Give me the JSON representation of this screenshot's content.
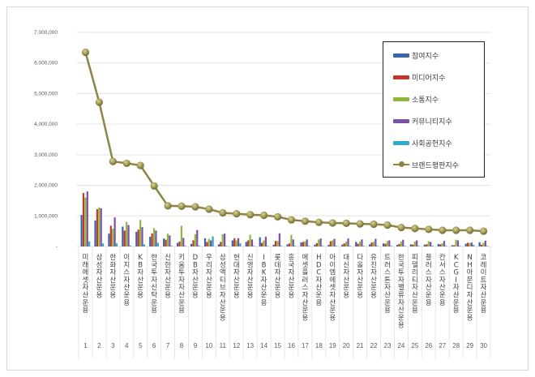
{
  "chart_data": {
    "type": "bar+line",
    "title": "",
    "xlabel": "",
    "ylabel": "",
    "ylim": [
      0,
      7000000
    ],
    "yticks": [
      "-",
      "1,000,000",
      "2,000,000",
      "3,000,000",
      "4,000,000",
      "5,000,000",
      "6,000,000",
      "7,000,000"
    ],
    "grid": true,
    "legend_position": "upper-right-inside",
    "x": [
      1,
      2,
      3,
      4,
      5,
      6,
      7,
      8,
      9,
      10,
      11,
      12,
      13,
      14,
      15,
      16,
      17,
      18,
      19,
      20,
      21,
      22,
      23,
      24,
      25,
      26,
      27,
      28,
      29,
      30
    ],
    "categories": [
      "미래에셋자산운용",
      "삼성자산운용",
      "한화자산운용",
      "이지스자산운용",
      "KB자산운용",
      "한국투자신탁운용",
      "신한자산운용",
      "키움투자자산운용",
      "DB자산운용",
      "우리자산운용",
      "삼성액티브자산운용",
      "현대자산운용",
      "신영자산운용",
      "IBK자산운용",
      "롯데자산운용",
      "흥국자산운용",
      "에셋플러스자산운용",
      "HDC자산운용",
      "아이엠에셋자산운용",
      "대신자산운용",
      "다올자산운용",
      "유진자산운용",
      "트러스톤자산운용",
      "한국투자밸류자산운용",
      "피델리티자산운용",
      "플러스자산운용",
      "칸서스자산운용",
      "KCGI자산운용",
      "NH아문디자산운용",
      "코레이트자산운용"
    ],
    "series": [
      {
        "name": "참여지수",
        "type": "bar",
        "color": "#3b64ad",
        "values": [
          1030000,
          850000,
          420000,
          650000,
          480000,
          320000,
          260000,
          120000,
          80000,
          270000,
          70000,
          200000,
          150000,
          300000,
          60000,
          70000,
          130000,
          60000,
          50000,
          60000,
          150000,
          70000,
          100000,
          50000,
          70000,
          60000,
          80000,
          40000,
          90000,
          140000
        ]
      },
      {
        "name": "미디어지수",
        "type": "bar",
        "color": "#c0392b",
        "values": [
          1750000,
          1220000,
          680000,
          520000,
          550000,
          430000,
          220000,
          160000,
          200000,
          150000,
          150000,
          270000,
          200000,
          120000,
          180000,
          100000,
          150000,
          110000,
          170000,
          100000,
          90000,
          130000,
          90000,
          80000,
          60000,
          70000,
          70000,
          40000,
          120000,
          60000
        ]
      },
      {
        "name": "소통지수",
        "type": "bar",
        "color": "#8fb83a",
        "values": [
          1600000,
          1280000,
          580000,
          800000,
          870000,
          600000,
          420000,
          680000,
          400000,
          250000,
          400000,
          200000,
          380000,
          200000,
          180000,
          380000,
          170000,
          230000,
          200000,
          160000,
          160000,
          150000,
          180000,
          160000,
          160000,
          170000,
          110000,
          220000,
          110000,
          120000
        ]
      },
      {
        "name": "커뮤니티지수",
        "type": "bar",
        "color": "#7d4fa8",
        "values": [
          1800000,
          1250000,
          950000,
          700000,
          630000,
          520000,
          360000,
          280000,
          540000,
          200000,
          420000,
          270000,
          230000,
          320000,
          430000,
          230000,
          230000,
          260000,
          250000,
          260000,
          230000,
          250000,
          200000,
          220000,
          200000,
          150000,
          180000,
          200000,
          130000,
          190000
        ]
      },
      {
        "name": "사회공헌지수",
        "type": "bar",
        "color": "#2eaacb",
        "values": [
          160000,
          100000,
          100000,
          30000,
          70000,
          120000,
          20000,
          20000,
          30000,
          330000,
          20000,
          100000,
          20000,
          20000,
          20000,
          20000,
          20000,
          20000,
          20000,
          20000,
          20000,
          20000,
          20000,
          20000,
          20000,
          30000,
          20000,
          20000,
          50000,
          20000
        ]
      },
      {
        "name": "브랜드평판지수",
        "type": "line",
        "color": "#8c8545",
        "values": [
          6350000,
          4720000,
          2780000,
          2720000,
          2650000,
          1980000,
          1330000,
          1320000,
          1300000,
          1220000,
          1100000,
          1070000,
          1040000,
          1020000,
          970000,
          870000,
          830000,
          790000,
          770000,
          760000,
          740000,
          730000,
          700000,
          620000,
          590000,
          560000,
          530000,
          530000,
          530000,
          500000
        ]
      }
    ]
  }
}
